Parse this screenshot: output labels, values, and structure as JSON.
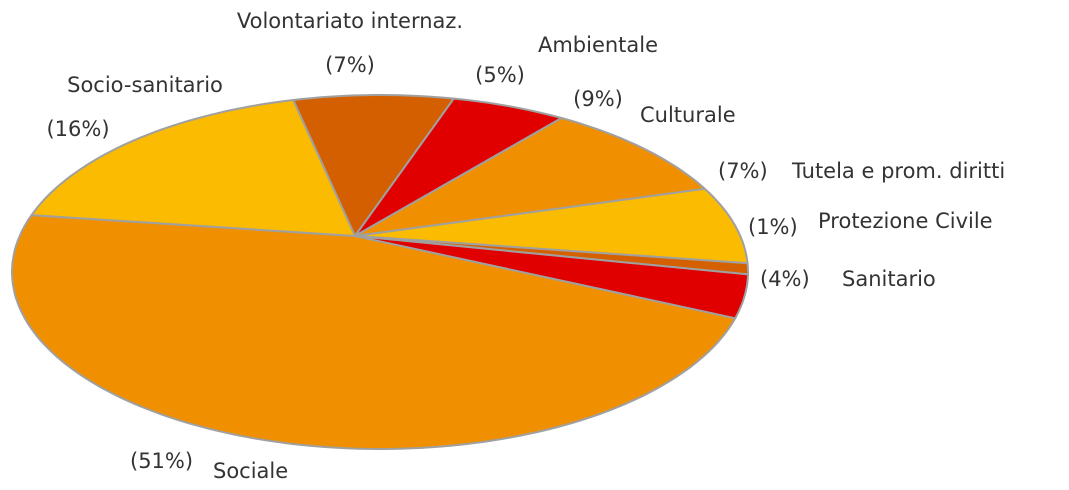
{
  "chart_data": {
    "type": "pie",
    "categories": [
      "Volontariato internaz.",
      "Ambientale",
      "Culturale",
      "Tutela e prom. diritti",
      "Protezione Civile",
      "Sanitario",
      "Sociale",
      "Socio-sanitario"
    ],
    "values": [
      7,
      5,
      9,
      7,
      1,
      4,
      51,
      16
    ],
    "value_labels": [
      "(7%)",
      "(5%)",
      "(9%)",
      "(7%)",
      "(1%)",
      "(4%)",
      "(51%)",
      "(16%)"
    ],
    "colors": [
      "#d45f00",
      "#e00000",
      "#f09000",
      "#fbbb00",
      "#d46000",
      "#e00000",
      "#f09000",
      "#fbbb00"
    ]
  }
}
